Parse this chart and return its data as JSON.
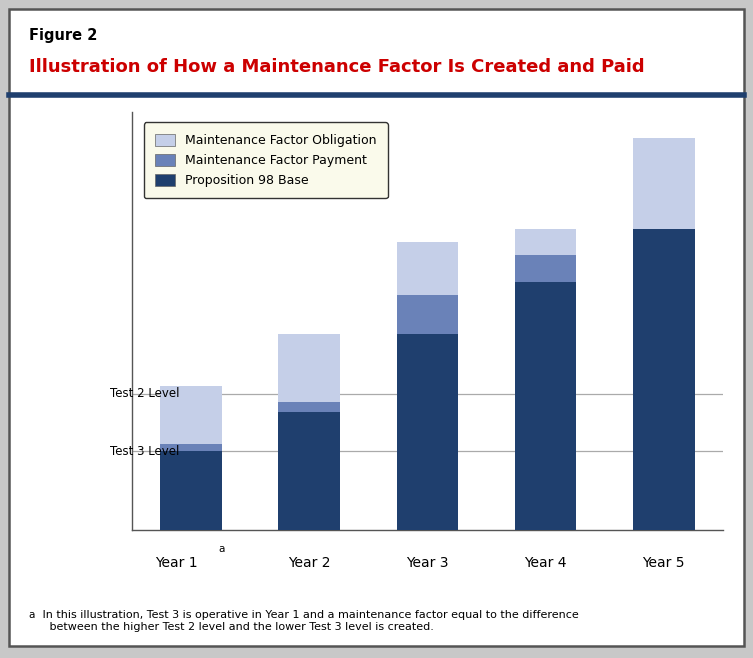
{
  "title_label": "Figure 2",
  "title_main": "Illustration of How a Maintenance Factor Is Created and Paid",
  "categories": [
    "Year 1",
    "Year 2",
    "Year 3",
    "Year 4",
    "Year 5"
  ],
  "year1_superscript": "a",
  "prop98_base": [
    3.0,
    4.5,
    7.5,
    9.5,
    11.5
  ],
  "mf_payment": [
    0.3,
    0.4,
    1.5,
    1.0,
    0.0
  ],
  "mf_obligation": [
    2.2,
    2.6,
    2.0,
    1.0,
    3.5
  ],
  "color_base": "#1F3F6E",
  "color_payment": "#6A82B8",
  "color_obligation": "#C5CFE8",
  "legend_bg": "#FAFAEB",
  "border_color": "#333333",
  "divider_color": "#1F3F6E",
  "test2_level": 5.2,
  "test3_level": 3.0,
  "test2_label": "Test 2 Level",
  "test3_label": "Test 3 Level",
  "footnote_super": "a",
  "footnote_text": " In this illustration, Test 3 is operative in Year 1 and a maintenance factor equal to the difference\n   between the higher Test 2 level and the lower Test 3 level is created.",
  "legend_labels": [
    "Maintenance Factor Obligation",
    "Maintenance Factor Payment",
    "Proposition 98 Base"
  ],
  "ylim": [
    0,
    16
  ],
  "fig_bg": "#C8C8C8",
  "box_bg": "#FFFFFF"
}
